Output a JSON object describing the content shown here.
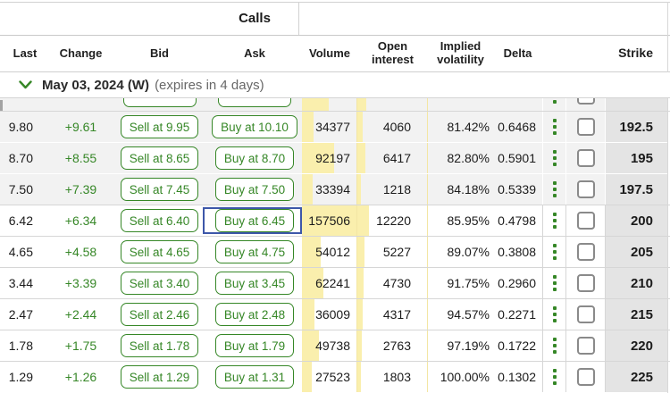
{
  "section_title": "Calls",
  "columns": {
    "last": "Last",
    "change": "Change",
    "bid": "Bid",
    "ask": "Ask",
    "volume": "Volume",
    "open_interest": "Open interest",
    "implied_volatility": "Implied volatility",
    "delta": "Delta",
    "strike": "Strike"
  },
  "expiration": {
    "date_label": "May 03, 2024 (W)",
    "note": "(expires in 4 days)",
    "expanded": true
  },
  "colors": {
    "accent_green": "#368727",
    "histogram_yellow": "#faefad",
    "itm_row_gray": "#f2f2f2",
    "strike_column_gray": "#e4e4e4",
    "selection_blue": "#3d57a9"
  },
  "partial_row": {
    "last": "",
    "change": "",
    "sell": "",
    "buy": "",
    "volume": "",
    "open_interest": "",
    "iv": "",
    "delta": "",
    "strike": "",
    "itm": true,
    "selected": false,
    "volume_bar": 30,
    "oi_bar": 10
  },
  "rows": [
    {
      "last": "9.80",
      "change": "+9.61",
      "sell": "Sell at 9.95",
      "buy": "Buy at 10.10",
      "volume": "34377",
      "open_interest": "4060",
      "iv": "81.42%",
      "delta": "0.6468",
      "strike": "192.5",
      "itm": true,
      "selected": false,
      "volume_bar": 13,
      "oi_bar": 6
    },
    {
      "last": "8.70",
      "change": "+8.55",
      "sell": "Sell at 8.65",
      "buy": "Buy at 8.70",
      "volume": "92197",
      "open_interest": "6417",
      "iv": "82.80%",
      "delta": "0.5901",
      "strike": "195",
      "itm": true,
      "selected": false,
      "volume_bar": 36,
      "oi_bar": 9
    },
    {
      "last": "7.50",
      "change": "+7.39",
      "sell": "Sell at 7.45",
      "buy": "Buy at 7.50",
      "volume": "33394",
      "open_interest": "1218",
      "iv": "84.18%",
      "delta": "0.5339",
      "strike": "197.5",
      "itm": true,
      "selected": false,
      "volume_bar": 12,
      "oi_bar": 4
    },
    {
      "last": "6.42",
      "change": "+6.34",
      "sell": "Sell at 6.40",
      "buy": "Buy at 6.45",
      "volume": "157506",
      "open_interest": "12220",
      "iv": "85.95%",
      "delta": "0.4798",
      "strike": "200",
      "itm": false,
      "selected": true,
      "volume_bar": 61,
      "oi_bar": 13
    },
    {
      "last": "4.65",
      "change": "+4.58",
      "sell": "Sell at 4.65",
      "buy": "Buy at 4.75",
      "volume": "54012",
      "open_interest": "5227",
      "iv": "89.07%",
      "delta": "0.3808",
      "strike": "205",
      "itm": false,
      "selected": false,
      "volume_bar": 21,
      "oi_bar": 8
    },
    {
      "last": "3.44",
      "change": "+3.39",
      "sell": "Sell at 3.40",
      "buy": "Buy at 3.45",
      "volume": "62241",
      "open_interest": "4730",
      "iv": "91.75%",
      "delta": "0.2960",
      "strike": "210",
      "itm": false,
      "selected": false,
      "volume_bar": 24,
      "oi_bar": 7
    },
    {
      "last": "2.47",
      "change": "+2.44",
      "sell": "Sell at 2.46",
      "buy": "Buy at 2.48",
      "volume": "36009",
      "open_interest": "4317",
      "iv": "94.57%",
      "delta": "0.2271",
      "strike": "215",
      "itm": false,
      "selected": false,
      "volume_bar": 14,
      "oi_bar": 6
    },
    {
      "last": "1.78",
      "change": "+1.75",
      "sell": "Sell at 1.78",
      "buy": "Buy at 1.79",
      "volume": "49738",
      "open_interest": "2763",
      "iv": "97.19%",
      "delta": "0.1722",
      "strike": "220",
      "itm": false,
      "selected": false,
      "volume_bar": 19,
      "oi_bar": 5
    },
    {
      "last": "1.29",
      "change": "+1.26",
      "sell": "Sell at 1.29",
      "buy": "Buy at 1.31",
      "volume": "27523",
      "open_interest": "1803",
      "iv": "100.00%",
      "delta": "0.1302",
      "strike": "225",
      "itm": false,
      "selected": false,
      "volume_bar": 11,
      "oi_bar": 4
    }
  ]
}
